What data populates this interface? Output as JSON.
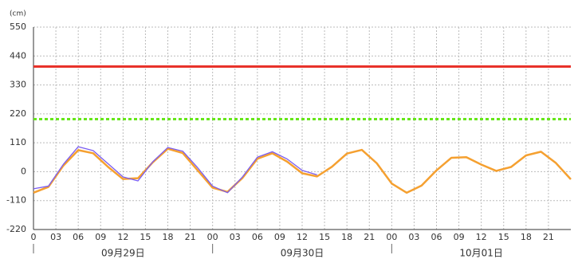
{
  "chart_data": {
    "type": "line",
    "y_unit": "(cm)",
    "x": [
      0,
      2,
      4,
      6,
      8,
      10,
      12,
      14,
      16,
      18,
      20,
      22,
      24,
      26,
      28,
      30,
      32,
      34,
      36,
      38,
      40,
      42,
      44,
      46,
      48,
      50,
      52,
      54,
      56,
      58,
      60,
      62,
      64,
      66,
      68,
      70,
      72
    ],
    "xlim": [
      0,
      72
    ],
    "xticks": [
      0,
      {
        "value": 3,
        "label": "03"
      },
      {
        "value": 6,
        "label": "06"
      },
      {
        "value": 9,
        "label": "09"
      },
      {
        "value": 12,
        "label": "12"
      },
      {
        "value": 15,
        "label": "15"
      },
      {
        "value": 18,
        "label": "18"
      },
      {
        "value": 21,
        "label": "21"
      },
      {
        "value": 24,
        "label": "00"
      },
      {
        "value": 27,
        "label": "03"
      },
      {
        "value": 30,
        "label": "06"
      },
      {
        "value": 33,
        "label": "09"
      },
      {
        "value": 36,
        "label": "12"
      },
      {
        "value": 39,
        "label": "15"
      },
      {
        "value": 42,
        "label": "18"
      },
      {
        "value": 45,
        "label": "21"
      },
      {
        "value": 48,
        "label": "00"
      },
      {
        "value": 51,
        "label": "03"
      },
      {
        "value": 54,
        "label": "06"
      },
      {
        "value": 57,
        "label": "09"
      },
      {
        "value": 60,
        "label": "12"
      },
      {
        "value": 63,
        "label": "15"
      },
      {
        "value": 66,
        "label": "18"
      },
      {
        "value": 69,
        "label": "21"
      }
    ],
    "days": [
      {
        "value": 12,
        "label": "09月29日"
      },
      {
        "value": 36,
        "label": "09月30日"
      },
      {
        "value": 60,
        "label": "10月01日"
      }
    ],
    "day_separators": [
      0,
      24,
      48
    ],
    "ylim": [
      -220,
      550
    ],
    "yticks": [
      -220,
      -110,
      0,
      110,
      220,
      330,
      440,
      550
    ],
    "grid": true,
    "reference_lines": [
      {
        "value": 400,
        "color": "#e8322a",
        "dashed": false
      },
      {
        "value": 200,
        "color": "#66e61a",
        "dashed": true
      }
    ],
    "series": [
      {
        "color": "#f5a030",
        "values": [
          -80,
          -58,
          23,
          82,
          70,
          18,
          -28,
          -25,
          36,
          87,
          71,
          5,
          -61,
          -77,
          -24,
          49,
          70,
          38,
          -6,
          -18,
          19,
          69,
          83,
          32,
          -45,
          -80,
          -53,
          5,
          53,
          55,
          27,
          3,
          18,
          62,
          76,
          33,
          -29
        ]
      },
      {
        "color": "#7a5cf0",
        "values": [
          -65,
          -55,
          28,
          95,
          80,
          30,
          -20,
          -35,
          38,
          92,
          78,
          15,
          -55,
          -80,
          -20,
          55,
          76,
          48,
          5,
          -12,
          null,
          null,
          null,
          null,
          null,
          null,
          null,
          null,
          null,
          null,
          null,
          null,
          null,
          null,
          null,
          null,
          null
        ]
      }
    ]
  }
}
